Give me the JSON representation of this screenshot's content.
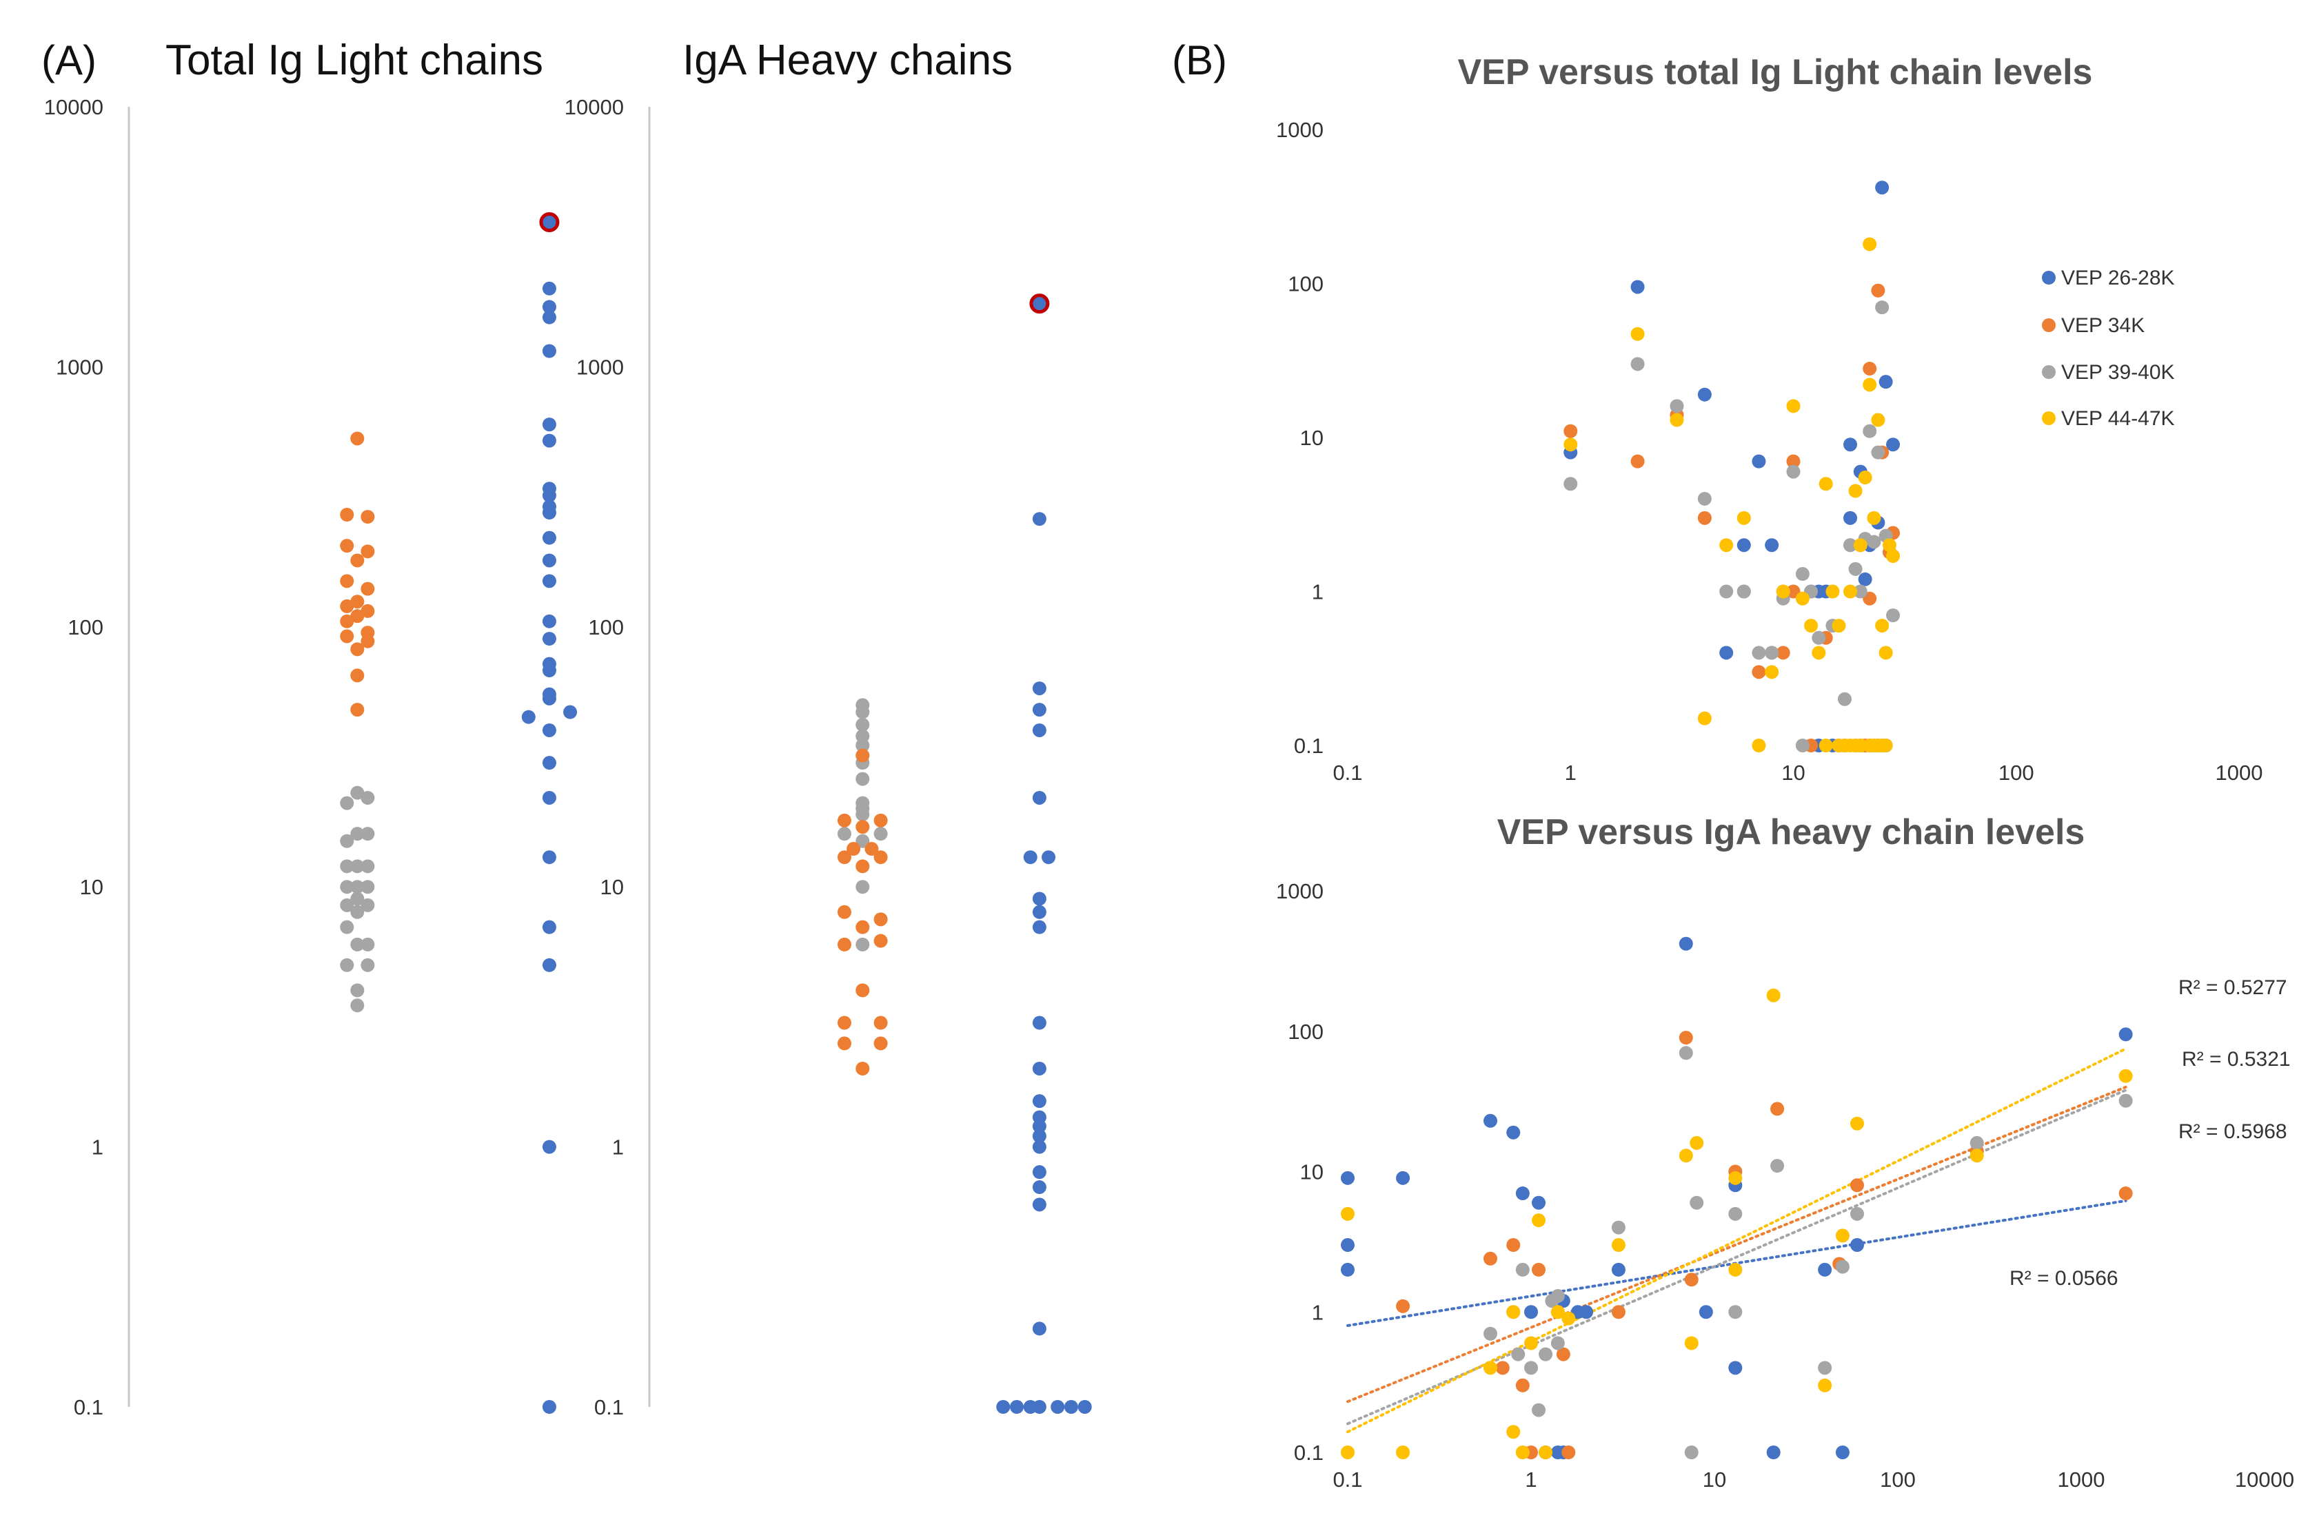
{
  "panels": {
    "a_label": "(A)",
    "b_label": "(B)"
  },
  "colors": {
    "blue": "#4472C4",
    "orange": "#ED7D31",
    "gray": "#A5A5A5",
    "yellow": "#FFC000",
    "highlight": "#C00000"
  },
  "chart_data": [
    {
      "id": "light",
      "type": "scatter",
      "title": "Total Ig Light chains",
      "yscale": "log",
      "ylim": [
        0.1,
        10000
      ],
      "yticks": [
        "10000",
        "1000",
        "100",
        "10",
        "1",
        "0.1"
      ],
      "series": [
        {
          "name": "orange",
          "color": "orange",
          "x": [
            0.44,
            0.42,
            0.46,
            0.42,
            0.46,
            0.44,
            0.42,
            0.46,
            0.44,
            0.42,
            0.46,
            0.44,
            0.42,
            0.46,
            0.42,
            0.46,
            0.44,
            0.44,
            0.44
          ],
          "values": [
            530,
            270,
            265,
            205,
            195,
            180,
            150,
            140,
            125,
            120,
            115,
            110,
            105,
            95,
            92,
            88,
            82,
            65,
            48
          ]
        },
        {
          "name": "gray",
          "color": "gray",
          "x": [
            0.44,
            0.42,
            0.46,
            0.44,
            0.46,
            0.42,
            0.44,
            0.42,
            0.46,
            0.44,
            0.42,
            0.46,
            0.44,
            0.42,
            0.46,
            0.44,
            0.42,
            0.46,
            0.44,
            0.44
          ],
          "values": [
            23,
            21,
            22,
            16,
            16,
            15,
            12,
            12,
            12,
            10,
            10,
            10,
            9,
            8.5,
            8.5,
            8,
            7,
            6,
            6,
            4
          ]
        },
        {
          "name": "gray2",
          "color": "gray",
          "x": [
            0.42,
            0.46,
            0.44
          ],
          "values": [
            5,
            5,
            3.5
          ]
        },
        {
          "name": "blue",
          "color": "blue",
          "x": [
            0.81,
            0.81,
            0.81,
            0.81,
            0.81,
            0.81,
            0.81,
            0.81,
            0.81,
            0.81,
            0.81,
            0.81,
            0.81,
            0.81,
            0.81,
            0.81,
            0.81,
            0.81,
            0.81,
            0.77,
            0.85,
            0.81,
            0.81,
            0.81,
            0.81,
            0.81,
            0.81,
            0.81,
            0.81
          ],
          "values": [
            2000,
            1700,
            1550,
            1150,
            600,
            520,
            340,
            320,
            290,
            275,
            220,
            180,
            150,
            105,
            90,
            72,
            68,
            55,
            40,
            45,
            47,
            30,
            22,
            13,
            7,
            5,
            1,
            0.1,
            53
          ]
        },
        {
          "name": "highlighted",
          "color": "blue",
          "outlined": true,
          "x": [
            0.81
          ],
          "values": [
            3600
          ]
        }
      ]
    },
    {
      "id": "iga",
      "type": "scatter",
      "title": "IgA Heavy chains",
      "yscale": "log",
      "ylim": [
        0.1,
        10000
      ],
      "yticks": [
        "10000",
        "1000",
        "100",
        "10",
        "1",
        "0.1"
      ],
      "series": [
        {
          "name": "gray",
          "color": "gray",
          "x": [
            0.47,
            0.47,
            0.47,
            0.47,
            0.47,
            0.47,
            0.47,
            0.47,
            0.43,
            0.51,
            0.47,
            0.47,
            0.47,
            0.47,
            0.47
          ],
          "values": [
            50,
            47,
            42,
            38,
            35,
            30,
            26,
            21,
            16,
            16,
            20,
            19,
            15,
            10,
            6
          ]
        },
        {
          "name": "orange",
          "color": "orange",
          "x": [
            0.47,
            0.43,
            0.51,
            0.45,
            0.49,
            0.43,
            0.51,
            0.47,
            0.47,
            0.43,
            0.51,
            0.43,
            0.51,
            0.47,
            0.47,
            0.43,
            0.51,
            0.43,
            0.51,
            0.47
          ],
          "values": [
            32,
            18,
            18,
            14,
            14,
            13,
            13,
            17,
            12,
            8,
            7.5,
            6,
            6.2,
            7,
            4,
            3,
            3,
            2.5,
            2.5,
            2
          ]
        },
        {
          "name": "blue",
          "color": "blue",
          "x": [
            0.86,
            0.86,
            0.86,
            0.86,
            0.84,
            0.88,
            0.86,
            0.86,
            0.86,
            0.86,
            0.86,
            0.86,
            0.86,
            0.86,
            0.86,
            0.86,
            0.86,
            0.86,
            0.86,
            0.86,
            0.86,
            0.86
          ],
          "values": [
            260,
            58,
            48,
            40,
            13,
            13,
            22,
            9,
            8,
            7,
            3,
            2,
            1.5,
            1.3,
            1.2,
            1.1,
            1,
            0.8,
            0.7,
            0.6,
            0.2,
            0.1
          ]
        },
        {
          "name": "blue-zero",
          "color": "blue",
          "x": [
            0.78,
            0.81,
            0.84,
            0.9,
            0.93,
            0.96
          ],
          "values": [
            0.1,
            0.1,
            0.1,
            0.1,
            0.1,
            0.1
          ]
        },
        {
          "name": "highlighted",
          "color": "blue",
          "outlined": true,
          "x": [
            0.86
          ],
          "values": [
            1750
          ]
        }
      ]
    },
    {
      "id": "vep_light",
      "type": "scatter",
      "title": "VEP versus total Ig Light chain levels",
      "xscale": "log",
      "yscale": "log",
      "xlim": [
        0.1,
        1000
      ],
      "ylim": [
        0.1,
        1000
      ],
      "xticks": [
        "0.1",
        "1",
        "10",
        "100",
        "1000"
      ],
      "yticks": [
        "1000",
        "100",
        "10",
        "1",
        "0.1"
      ],
      "legend": {
        "position": "right",
        "entries": [
          "VEP 26-28K",
          "VEP 34K",
          "VEP 39-40K",
          "VEP 44-47K"
        ]
      },
      "series": [
        {
          "name": "VEP 26-28K",
          "color": "blue",
          "x": [
            25,
            2,
            1,
            4,
            7,
            26,
            18,
            28,
            20,
            5,
            6,
            8,
            12,
            14,
            13,
            18,
            21,
            22,
            24,
            13,
            15,
            16,
            17,
            19,
            20,
            22,
            23,
            24,
            26,
            25
          ],
          "values": [
            420,
            95,
            8,
            19,
            7,
            23,
            9,
            9,
            6,
            0.4,
            2,
            2,
            1,
            1,
            1,
            3,
            1.2,
            2,
            2.8,
            0.1,
            0.1,
            0.1,
            0.1,
            0.1,
            0.1,
            0.1,
            0.1,
            0.1,
            0.1,
            0.1
          ]
        },
        {
          "name": "VEP 34K",
          "color": "orange",
          "x": [
            24,
            22,
            1,
            2,
            3,
            4,
            6,
            8,
            10,
            10,
            14,
            18,
            20,
            22,
            25,
            27,
            28,
            7,
            9,
            12,
            16,
            21
          ],
          "values": [
            90,
            28,
            11,
            7,
            14,
            3,
            1,
            0.4,
            7,
            1,
            0.5,
            2,
            2,
            0.9,
            8,
            1.8,
            2.4,
            0.3,
            0.4,
            0.1,
            0.1,
            0.1
          ]
        },
        {
          "name": "VEP 39-40K",
          "color": "gray",
          "x": [
            25,
            2,
            1,
            3,
            4,
            5,
            6,
            7,
            8,
            9,
            10,
            11,
            12,
            13,
            15,
            17,
            18,
            19,
            20,
            21,
            22,
            23,
            24,
            26,
            28,
            9,
            11
          ],
          "values": [
            70,
            30,
            5,
            16,
            4,
            1,
            1,
            0.4,
            0.4,
            0.9,
            6,
            1.3,
            1,
            0.5,
            0.6,
            0.2,
            2,
            1.4,
            1,
            2.2,
            11,
            2.1,
            8,
            2.3,
            0.7,
            1,
            0.1
          ]
        },
        {
          "name": "VEP 44-47K",
          "color": "yellow",
          "x": [
            22,
            2,
            1,
            3,
            5,
            6,
            7,
            8,
            9,
            10,
            11,
            12,
            13,
            14,
            15,
            16,
            17,
            18,
            19,
            20,
            21,
            22,
            23,
            24,
            25,
            26,
            27,
            28,
            4,
            14,
            16,
            18,
            19,
            20,
            22,
            23,
            24,
            25,
            26
          ],
          "values": [
            180,
            47,
            9,
            13,
            2,
            3,
            0.1,
            0.3,
            1,
            16,
            0.9,
            0.6,
            0.4,
            5,
            1,
            0.6,
            0.1,
            1,
            4.5,
            2,
            5.5,
            22,
            3,
            13,
            0.6,
            0.4,
            2,
            1.7,
            0.15,
            0.1,
            0.1,
            0.1,
            0.1,
            0.1,
            0.1,
            0.1,
            0.1,
            0.1,
            0.1
          ]
        }
      ]
    },
    {
      "id": "vep_iga",
      "type": "scatter",
      "title": "VEP versus IgA heavy chain levels",
      "xscale": "log",
      "yscale": "log",
      "xlim": [
        0.1,
        10000
      ],
      "ylim": [
        0.1,
        1000
      ],
      "xticks": [
        "0.1",
        "1",
        "10",
        "100",
        "1000",
        "10000"
      ],
      "yticks": [
        "1000",
        "100",
        "10",
        "1",
        "0.1"
      ],
      "r2_labels": [
        "R² = 0.5277",
        "R² = 0.5321",
        "R² = 0.5968",
        "R² = 0.0566"
      ],
      "trendlines": [
        {
          "series": "VEP 26-28K",
          "from": [
            0.1,
            0.8
          ],
          "to": [
            1750,
            6.2
          ]
        },
        {
          "series": "VEP 34K",
          "from": [
            0.1,
            0.23
          ],
          "to": [
            1750,
            40
          ]
        },
        {
          "series": "VEP 39-40K",
          "from": [
            0.1,
            0.16
          ],
          "to": [
            1750,
            38
          ]
        },
        {
          "series": "VEP 44-47K",
          "from": [
            0.1,
            0.14
          ],
          "to": [
            1750,
            75
          ]
        }
      ],
      "series": [
        {
          "name": "VEP 26-28K",
          "color": "blue",
          "x": [
            7,
            1750,
            0.1,
            0.1,
            0.1,
            0.2,
            0.6,
            0.8,
            0.9,
            1.1,
            1,
            1.5,
            2,
            3,
            9,
            13,
            13,
            40,
            60,
            1.4,
            1.2,
            1.5,
            21,
            50,
            1.8
          ],
          "values": [
            420,
            95,
            9,
            3,
            2,
            9,
            23,
            19,
            7,
            6,
            1,
            1.2,
            1,
            2,
            1,
            8,
            0.4,
            2,
            3,
            0.1,
            0.1,
            0.1,
            0.1,
            0.1,
            1
          ]
        },
        {
          "name": "VEP 34K",
          "color": "orange",
          "x": [
            7,
            1750,
            0.2,
            0.6,
            0.8,
            1.1,
            1.4,
            0.7,
            0.9,
            1.5,
            3,
            7.5,
            13,
            22,
            48,
            60,
            270,
            1,
            1.6
          ],
          "values": [
            90,
            7,
            1.1,
            2.4,
            3,
            2,
            1,
            0.4,
            0.3,
            0.5,
            1,
            1.7,
            10,
            28,
            2.2,
            8,
            14,
            0.1,
            0.1
          ]
        },
        {
          "name": "VEP 39-40K",
          "color": "gray",
          "x": [
            7,
            1750,
            0.6,
            0.8,
            0.9,
            1.1,
            1.4,
            1.2,
            3,
            8,
            13,
            22,
            50,
            60,
            270,
            0.85,
            1.3,
            1.4,
            7.5,
            13,
            40,
            1
          ],
          "values": [
            70,
            32,
            0.7,
            1,
            2,
            0.2,
            1.3,
            0.5,
            4,
            6,
            5,
            11,
            2.1,
            5,
            16,
            0.5,
            1.2,
            0.6,
            0.1,
            1,
            0.4,
            0.4
          ]
        },
        {
          "name": "VEP 44-47K",
          "color": "yellow",
          "x": [
            21,
            1750,
            0.1,
            0.1,
            0.2,
            0.6,
            0.8,
            1.1,
            1.4,
            1,
            3,
            7,
            8,
            13,
            13,
            40,
            50,
            60,
            270,
            0.8,
            0.9,
            1.6,
            7.5,
            1.2
          ],
          "values": [
            180,
            48,
            5,
            0.1,
            0.1,
            0.4,
            0.14,
            4.5,
            1,
            0.6,
            3,
            13,
            16,
            9,
            2,
            0.3,
            3.5,
            22,
            13,
            1,
            0.1,
            0.9,
            0.6,
            0.1
          ]
        }
      ]
    }
  ]
}
